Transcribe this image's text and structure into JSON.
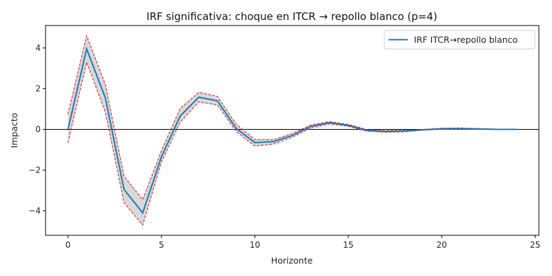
{
  "chart_data": {
    "type": "line",
    "title": "IRF significativa: choque en ITCR → repollo blanco (p=4)",
    "xlabel": "Horizonte",
    "ylabel": "Impacto",
    "xlim": [
      -1.2,
      25.2
    ],
    "ylim": [
      -5.2,
      5.1
    ],
    "xticks": [
      0,
      5,
      10,
      15,
      20,
      25
    ],
    "yticks": [
      -4,
      -2,
      0,
      2,
      4
    ],
    "grid": false,
    "legend_position": "top-right",
    "zero_line": true,
    "x": [
      0,
      1,
      2,
      3,
      4,
      5,
      6,
      7,
      8,
      9,
      10,
      11,
      12,
      13,
      14,
      15,
      16,
      17,
      18,
      19,
      20,
      21,
      22,
      23,
      24
    ],
    "series": [
      {
        "name": "IRF ITCR→repollo blanco",
        "color": "#1f77b4",
        "values": [
          0.0,
          3.95,
          1.55,
          -2.95,
          -4.1,
          -1.35,
          0.65,
          1.58,
          1.4,
          0.05,
          -0.65,
          -0.6,
          -0.3,
          0.15,
          0.33,
          0.2,
          -0.05,
          -0.1,
          -0.08,
          -0.02,
          0.03,
          0.04,
          0.02,
          0.0,
          0.0
        ]
      }
    ],
    "band": {
      "color": "#d62728",
      "fill": "#d9d9d9",
      "lower": [
        -0.65,
        3.3,
        0.85,
        -3.6,
        -4.7,
        -1.6,
        0.35,
        1.35,
        1.2,
        -0.1,
        -0.82,
        -0.72,
        -0.38,
        0.07,
        0.27,
        0.15,
        -0.09,
        -0.14,
        -0.12,
        -0.04,
        0.0,
        0.01,
        0.0,
        -0.01,
        -0.01
      ],
      "upper": [
        0.75,
        4.6,
        2.2,
        -2.3,
        -3.45,
        -1.05,
        1.02,
        1.82,
        1.62,
        0.25,
        -0.5,
        -0.5,
        -0.2,
        0.22,
        0.38,
        0.25,
        -0.01,
        -0.06,
        -0.04,
        0.0,
        0.06,
        0.07,
        0.04,
        0.01,
        0.01
      ]
    }
  }
}
